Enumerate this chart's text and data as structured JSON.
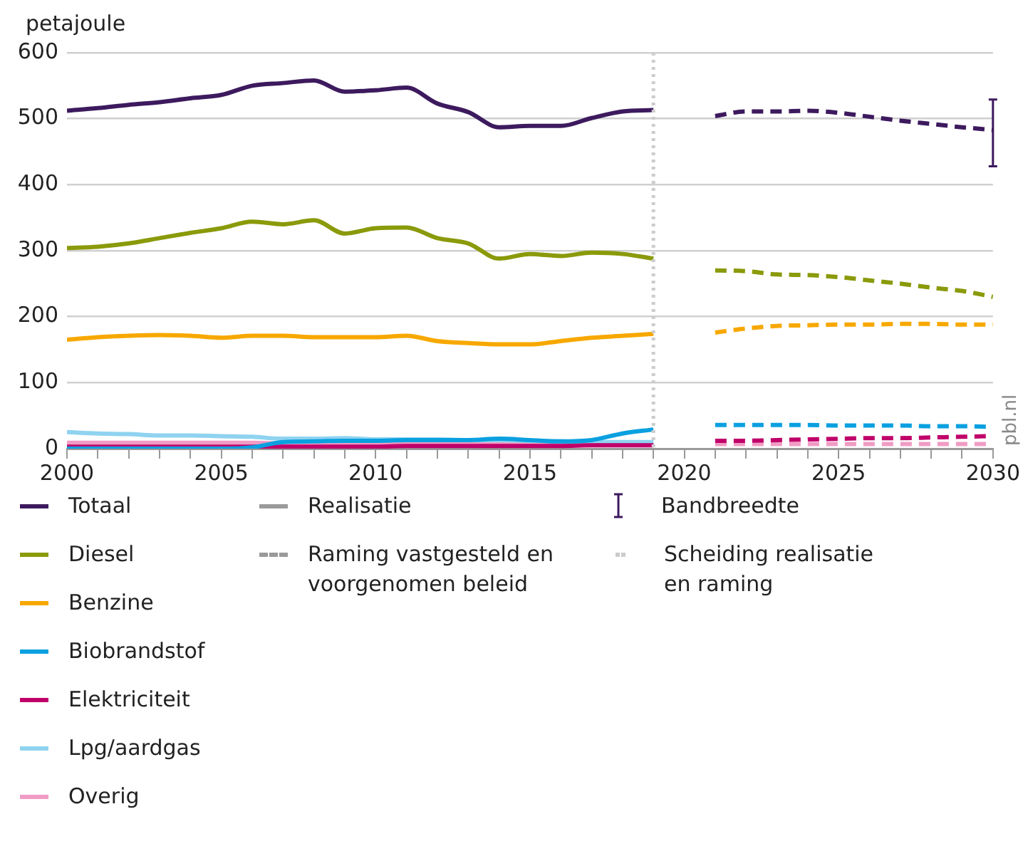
{
  "chart_data": {
    "type": "line",
    "ylabel": "petajoule",
    "xlim": [
      2000,
      2030
    ],
    "xticks": [
      2000,
      {
        "value": 2001,
        "label": null
      },
      {
        "value": 2002,
        "label": null
      },
      {
        "value": 2003,
        "label": null
      },
      {
        "value": 2004,
        "label": null
      },
      2005,
      {
        "value": 2006,
        "label": null
      },
      {
        "value": 2007,
        "label": null
      },
      {
        "value": 2008,
        "label": null
      },
      {
        "value": 2009,
        "label": null
      },
      2010,
      {
        "value": 2011,
        "label": null
      },
      {
        "value": 2012,
        "label": null
      },
      {
        "value": 2013,
        "label": null
      },
      {
        "value": 2014,
        "label": null
      },
      2015,
      {
        "value": 2016,
        "label": null
      },
      {
        "value": 2017,
        "label": null
      },
      {
        "value": 2018,
        "label": null
      },
      {
        "value": 2019,
        "label": null
      },
      2020,
      {
        "value": 2021,
        "label": null
      },
      {
        "value": 2022,
        "label": null
      },
      {
        "value": 2023,
        "label": null
      },
      {
        "value": 2024,
        "label": null
      },
      2025,
      {
        "value": 2026,
        "label": null
      },
      {
        "value": 2027,
        "label": null
      },
      {
        "value": 2028,
        "label": null
      },
      {
        "value": 2029,
        "label": null
      },
      2030
    ],
    "ylim": [
      0,
      600
    ],
    "yticks": [
      0,
      100,
      200,
      300,
      400,
      500,
      600
    ],
    "grid": "y",
    "legend": "bottom",
    "marker": "none",
    "series": [
      {
        "name": "Totaal",
        "color": "#3d1a5e",
        "line_style": "solid",
        "x": [
          2000,
          2001,
          2002,
          2003,
          2004,
          2005,
          2006,
          2007,
          2008,
          2009,
          2010,
          2011,
          2012,
          2013,
          2014,
          2015,
          2016,
          2017,
          2018,
          2019
        ],
        "values": [
          512,
          516,
          521,
          525,
          531,
          536,
          550,
          554,
          558,
          541,
          543,
          547,
          523,
          510,
          487,
          489,
          489,
          501,
          511,
          513
        ]
      },
      {
        "name": "Diesel",
        "color": "#8a9a0a",
        "line_style": "solid",
        "x": [
          2000,
          2001,
          2002,
          2003,
          2004,
          2005,
          2006,
          2007,
          2008,
          2009,
          2010,
          2011,
          2012,
          2013,
          2014,
          2015,
          2016,
          2017,
          2018,
          2019
        ],
        "values": [
          304,
          306,
          311,
          319,
          327,
          334,
          344,
          340,
          346,
          326,
          334,
          335,
          319,
          311,
          288,
          295,
          292,
          297,
          295,
          288
        ]
      },
      {
        "name": "Benzine",
        "color": "#f7a800",
        "line_style": "solid",
        "x": [
          2000,
          2001,
          2002,
          2003,
          2004,
          2005,
          2006,
          2007,
          2008,
          2009,
          2010,
          2011,
          2012,
          2013,
          2014,
          2015,
          2016,
          2017,
          2018,
          2019
        ],
        "values": [
          165,
          169,
          171,
          172,
          171,
          168,
          171,
          171,
          169,
          169,
          169,
          171,
          163,
          160,
          158,
          158,
          163,
          168,
          171,
          174
        ]
      },
      {
        "name": "Biobrandstof",
        "color": "#0aa0e0",
        "line_style": "solid",
        "x": [
          2000,
          2001,
          2002,
          2003,
          2004,
          2005,
          2006,
          2007,
          2008,
          2009,
          2010,
          2011,
          2012,
          2013,
          2014,
          2015,
          2016,
          2017,
          2018,
          2019
        ],
        "values": [
          0,
          0,
          0,
          0,
          0,
          0,
          2,
          10,
          11,
          12,
          12,
          13,
          13,
          13,
          15,
          13,
          11,
          13,
          23,
          29
        ]
      },
      {
        "name": "Elektriciteit",
        "color": "#c0006a",
        "line_style": "solid",
        "x": [
          2000,
          2001,
          2002,
          2003,
          2004,
          2005,
          2006,
          2007,
          2008,
          2009,
          2010,
          2011,
          2012,
          2013,
          2014,
          2015,
          2016,
          2017,
          2018,
          2019
        ],
        "values": [
          3,
          3,
          3,
          3,
          3,
          3,
          3,
          3,
          3,
          3,
          3,
          4,
          4,
          4,
          4,
          4,
          4,
          5,
          5,
          5
        ]
      },
      {
        "name": "Lpg/aardgas",
        "color": "#8fd3f0",
        "line_style": "solid",
        "x": [
          2000,
          2001,
          2002,
          2003,
          2004,
          2005,
          2006,
          2007,
          2008,
          2009,
          2010,
          2011,
          2012,
          2013,
          2014,
          2015,
          2016,
          2017,
          2018,
          2019
        ],
        "values": [
          25,
          23,
          22,
          20,
          20,
          19,
          18,
          15,
          15,
          16,
          14,
          14,
          14,
          13,
          13,
          12,
          11,
          10,
          10,
          10
        ]
      },
      {
        "name": "Overig",
        "color": "#f09cc4",
        "line_style": "solid",
        "x": [
          2000,
          2001,
          2002,
          2003,
          2004,
          2005,
          2006,
          2007,
          2008,
          2009,
          2010,
          2011,
          2012,
          2013,
          2014,
          2015,
          2016,
          2017,
          2018,
          2019
        ],
        "values": [
          9,
          9,
          9,
          9,
          9,
          9,
          9,
          8,
          8,
          8,
          8,
          8,
          8,
          8,
          8,
          8,
          8,
          8,
          8,
          8
        ]
      },
      {
        "color": "#3d1a5e",
        "line_style": "dashed",
        "x": [
          2021,
          2022,
          2023,
          2024,
          2025,
          2026,
          2027,
          2028,
          2029,
          2030
        ],
        "values": [
          504,
          511,
          511,
          512,
          509,
          503,
          497,
          492,
          487,
          483
        ],
        "errors": [
          null,
          null,
          null,
          null,
          null,
          null,
          null,
          null,
          null,
          [
            428,
            529
          ]
        ]
      },
      {
        "color": "#8a9a0a",
        "line_style": "dashed",
        "x": [
          2021,
          2022,
          2023,
          2024,
          2025,
          2026,
          2027,
          2028,
          2029,
          2030
        ],
        "values": [
          270,
          269,
          264,
          263,
          260,
          255,
          250,
          244,
          239,
          230
        ]
      },
      {
        "color": "#f7a800",
        "line_style": "dashed",
        "x": [
          2021,
          2022,
          2023,
          2024,
          2025,
          2026,
          2027,
          2028,
          2029,
          2030
        ],
        "values": [
          176,
          182,
          186,
          187,
          188,
          188,
          189,
          189,
          188,
          188
        ]
      },
      {
        "color": "#0aa0e0",
        "line_style": "dashed",
        "x": [
          2021,
          2022,
          2023,
          2024,
          2025,
          2026,
          2027,
          2028,
          2029,
          2030
        ],
        "values": [
          36,
          36,
          36,
          36,
          35,
          35,
          35,
          34,
          34,
          33
        ]
      },
      {
        "color": "#c0006a",
        "line_style": "dashed",
        "x": [
          2021,
          2022,
          2023,
          2024,
          2025,
          2026,
          2027,
          2028,
          2029,
          2030
        ],
        "values": [
          12,
          12,
          13,
          14,
          15,
          16,
          16,
          17,
          18,
          19
        ]
      },
      {
        "color": "#f09cc4",
        "line_style": "dashed",
        "x": [
          2021,
          2022,
          2023,
          2024,
          2025,
          2026,
          2027,
          2028,
          2029,
          2030
        ],
        "values": [
          7,
          7,
          7,
          7,
          7,
          7,
          7,
          7,
          7,
          7
        ]
      }
    ],
    "ref_lines": [
      {
        "axis": "x",
        "value": 2019,
        "label": "Scheiding realisatie en raming",
        "color": "#cccccc",
        "line_style": "dotted"
      }
    ],
    "annotations": [
      "Realisatie",
      "Raming vastgesteld en voorgenomen beleid",
      "Bandbreedte",
      "pbl.nl"
    ]
  }
}
